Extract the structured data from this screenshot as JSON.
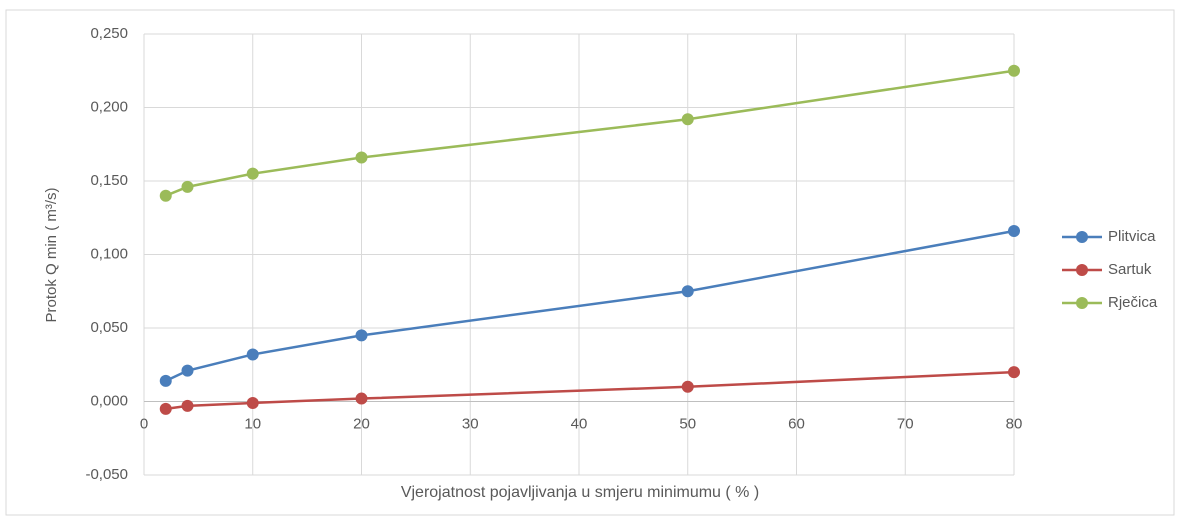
{
  "chart_data": {
    "type": "line",
    "x": [
      2,
      4,
      10,
      20,
      50,
      80
    ],
    "series": [
      {
        "name": "Plitvica",
        "color": "#4a7ebb",
        "values": [
          0.014,
          0.021,
          0.032,
          0.045,
          0.075,
          0.116
        ]
      },
      {
        "name": "Sartuk",
        "color": "#be4b48",
        "values": [
          -0.005,
          -0.003,
          -0.001,
          0.002,
          0.01,
          0.02
        ]
      },
      {
        "name": "Rječica",
        "color": "#9bbb59",
        "values": [
          0.14,
          0.146,
          0.155,
          0.166,
          0.192,
          0.225
        ]
      }
    ],
    "xlabel": "Vjerojatnost pojavljivanja u smjeru minimumu ( % )",
    "ylabel": "Protok Q min ( m³/s)",
    "xlim": [
      0,
      80
    ],
    "xticks": [
      0,
      10,
      20,
      30,
      40,
      50,
      60,
      70,
      80
    ],
    "ylim": [
      -0.05,
      0.25
    ],
    "yticks": [
      {
        "value": -0.05,
        "label": "-0,050"
      },
      {
        "value": 0,
        "label": "0,000"
      },
      {
        "value": 0.05,
        "label": "0,050"
      },
      {
        "value": 0.1,
        "label": "0,100"
      },
      {
        "value": 0.15,
        "label": "0,150"
      },
      {
        "value": 0.2,
        "label": "0,200"
      },
      {
        "value": 0.25,
        "label": "0,250"
      }
    ],
    "grid": true,
    "legend": "right"
  }
}
